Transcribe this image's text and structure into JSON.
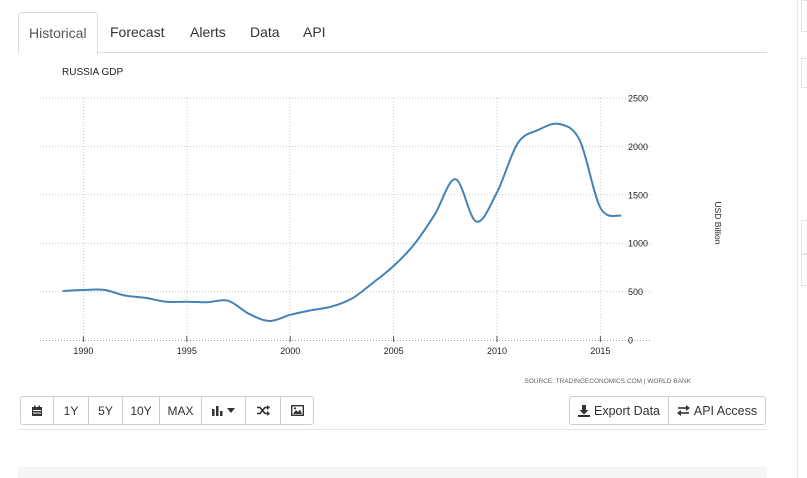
{
  "tabs": [
    {
      "label": "Historical",
      "active": true
    },
    {
      "label": "Forecast"
    },
    {
      "label": "Alerts"
    },
    {
      "label": "Data"
    },
    {
      "label": "API"
    }
  ],
  "chart_data": {
    "type": "line",
    "title": "RUSSIA GDP",
    "ylabel": "USD Billion",
    "source": "SOURCE: TRADINGECONOMICS.COM | WORLD BANK",
    "ylim": [
      0,
      2500
    ],
    "xlim": [
      1987.9,
      2017.4
    ],
    "x_ticks": [
      1990,
      1995,
      2000,
      2005,
      2010,
      2015
    ],
    "y_ticks": [
      0,
      500,
      1000,
      1500,
      2000,
      2500
    ],
    "grid": true,
    "y_axis_side": "right",
    "color": "#4682b4",
    "series": [
      {
        "x": [
          1989,
          1990,
          1991,
          1992,
          1993,
          1994,
          1995,
          1996,
          1997,
          1998,
          1999,
          2000,
          2001,
          2002,
          2003,
          2004,
          2005,
          2006,
          2007,
          2008,
          2009,
          2010,
          2011,
          2012,
          2013,
          2014,
          2015,
          2016
        ],
        "values": [
          506,
          517,
          518,
          460,
          435,
          395,
          396,
          391,
          405,
          271,
          196,
          260,
          307,
          345,
          430,
          591,
          764,
          990,
          1300,
          1661,
          1223,
          1525,
          2032,
          2170,
          2231,
          2064,
          1366,
          1283
        ]
      }
    ]
  },
  "toolbar": {
    "calendar_icon": "calendar-icon",
    "range_1y": "1Y",
    "range_5y": "5Y",
    "range_10y": "10Y",
    "range_max": "MAX",
    "chart_type_icon": "bar-chart-icon",
    "chart_type_caret_icon": "caret-down-icon",
    "compare_icon": "shuffle-icon",
    "image_icon": "image-icon",
    "export_icon": "download-icon",
    "export_label": "Export Data",
    "api_icon": "exchange-icon",
    "api_label": "API Access"
  }
}
